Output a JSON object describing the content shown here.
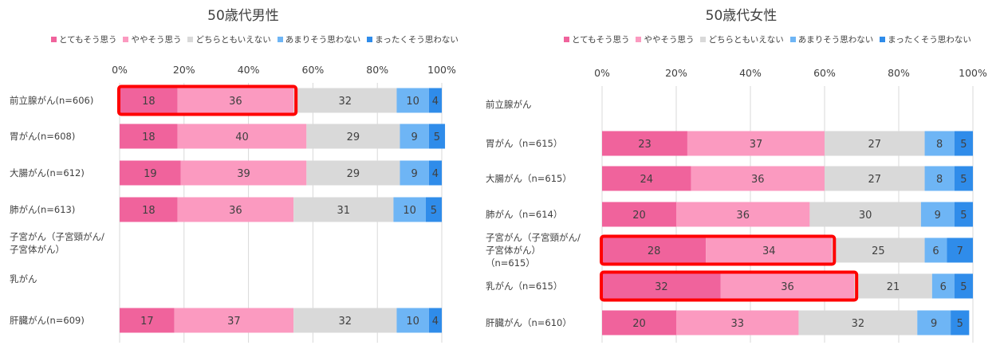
{
  "colors": {
    "strongly_agree": "#f0639c",
    "somewhat_agree": "#fb9ac0",
    "neutral": "#d9d9d9",
    "somewhat_disagree": "#6eb5f5",
    "strongly_disagree": "#2f8cea",
    "gridline": "#d9d9d9",
    "highlight": "#ff0000",
    "text": "#404040"
  },
  "legend": [
    "とてもそう思う",
    "ややそう思う",
    "どちらともいえない",
    "あまりそう思わない",
    "まったくそう思わない"
  ],
  "chart_data": [
    {
      "type": "bar",
      "orientation": "horizontal-stacked-100",
      "title": "50歳代男性",
      "xlim": [
        0,
        100
      ],
      "x_ticks": [
        "0%",
        "20%",
        "40%",
        "60%",
        "80%",
        "100%"
      ],
      "grid": true,
      "legend_position": "top",
      "categories": [
        "前立腺がん(n=606)",
        "胃がん(n=608)",
        "大腸がん(n=612)",
        "肺がん(n=613)",
        "子宮がん（子宮頸がん/\n子宮体がん）",
        "乳がん",
        "肝臓がん(n=609)"
      ],
      "series": [
        {
          "name": "とてもそう思う",
          "values": [
            18,
            18,
            19,
            18,
            null,
            null,
            17
          ]
        },
        {
          "name": "ややそう思う",
          "values": [
            36,
            40,
            39,
            36,
            null,
            null,
            37
          ]
        },
        {
          "name": "どちらともいえない",
          "values": [
            32,
            29,
            29,
            31,
            null,
            null,
            32
          ]
        },
        {
          "name": "あまりそう思わない",
          "values": [
            10,
            9,
            9,
            10,
            null,
            null,
            10
          ]
        },
        {
          "name": "まったくそう思わない",
          "values": [
            4,
            5,
            4,
            5,
            null,
            null,
            4
          ]
        }
      ],
      "highlighted": [
        0
      ]
    },
    {
      "type": "bar",
      "orientation": "horizontal-stacked-100",
      "title": "50歳代女性",
      "xlim": [
        0,
        100
      ],
      "x_ticks": [
        "0%",
        "20%",
        "40%",
        "60%",
        "80%",
        "100%"
      ],
      "grid": true,
      "legend_position": "top",
      "categories": [
        "前立腺がん",
        "胃がん（n=615）",
        "大腸がん（n=615）",
        "肺がん（n=614）",
        "子宮がん（子宮頸がん/\n子宮体がん）\n（n=615）",
        "乳がん（n=615）",
        "肝臓がん（n=610）"
      ],
      "series": [
        {
          "name": "とてもそう思う",
          "values": [
            null,
            23,
            24,
            20,
            28,
            32,
            20
          ]
        },
        {
          "name": "ややそう思う",
          "values": [
            null,
            37,
            36,
            36,
            34,
            36,
            33
          ]
        },
        {
          "name": "どちらともいえない",
          "values": [
            null,
            27,
            27,
            30,
            25,
            21,
            32
          ]
        },
        {
          "name": "あまりそう思わない",
          "values": [
            null,
            8,
            8,
            9,
            6,
            6,
            9
          ]
        },
        {
          "name": "まったくそう思わない",
          "values": [
            null,
            5,
            5,
            5,
            7,
            5,
            5
          ]
        }
      ],
      "highlighted": [
        4,
        5
      ]
    }
  ]
}
